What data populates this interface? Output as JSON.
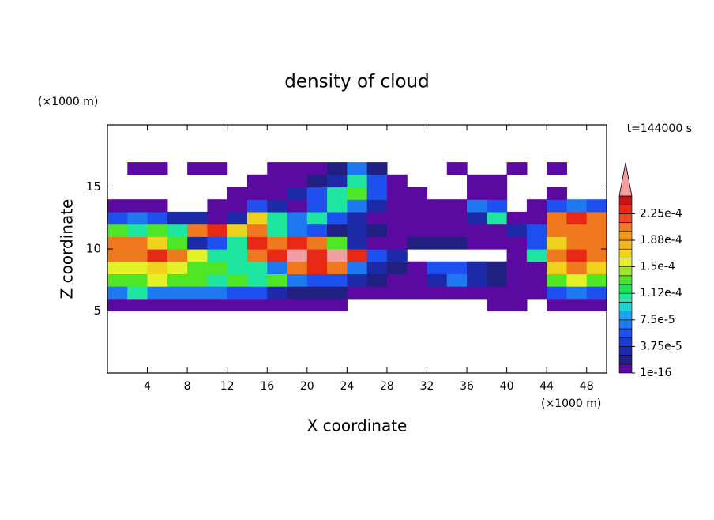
{
  "chart_data": {
    "type": "contour",
    "title": "density of cloud",
    "xlabel": "X coordinate",
    "ylabel": "Z coordinate",
    "x_unit": "(×1000 m)",
    "y_unit": "(×1000 m)",
    "annotation": "t=144000 s",
    "xlim": [
      0,
      50
    ],
    "ylim": [
      0,
      20
    ],
    "xticks": [
      4,
      8,
      12,
      16,
      20,
      24,
      28,
      32,
      36,
      40,
      44,
      48
    ],
    "yticks": [
      5,
      10,
      15
    ],
    "x": [
      1,
      3,
      5,
      7,
      9,
      11,
      13,
      15,
      17,
      19,
      21,
      23,
      25,
      27,
      29,
      31,
      33,
      35,
      37,
      39,
      41,
      43,
      45,
      47,
      49
    ],
    "z": [
      5.5,
      6.5,
      7.5,
      8.5,
      9.5,
      10.5,
      11.5,
      12.5,
      13.5,
      14.5,
      15.5,
      16.5
    ],
    "field": [
      [
        5e-06,
        5e-06,
        5e-06,
        5e-06,
        5e-06,
        5e-06,
        5e-06,
        5e-06,
        5e-06,
        5e-06,
        5e-06,
        5e-06,
        null,
        null,
        null,
        null,
        null,
        null,
        null,
        5e-06,
        5e-06,
        null,
        5e-06,
        5e-06,
        5e-06
      ],
      [
        7e-05,
        0.0001,
        7e-05,
        7e-05,
        7e-05,
        7e-05,
        5e-05,
        5e-05,
        3e-05,
        1.5e-05,
        1.5e-05,
        1.5e-05,
        5e-06,
        5e-06,
        5e-06,
        5e-06,
        5e-06,
        5e-06,
        5e-06,
        5e-06,
        5e-06,
        5e-06,
        5e-05,
        7e-05,
        5e-05
      ],
      [
        0.00013,
        0.00013,
        0.00015,
        0.00013,
        0.00013,
        0.0001,
        0.00013,
        0.0001,
        0.00013,
        7e-05,
        5e-05,
        5e-05,
        3e-05,
        1.5e-05,
        5e-06,
        5e-06,
        3e-05,
        7e-05,
        3e-05,
        1.5e-05,
        5e-06,
        5e-06,
        0.00013,
        0.00015,
        0.00013
      ],
      [
        0.00015,
        0.00015,
        0.00017,
        0.00015,
        0.00013,
        0.00013,
        0.0001,
        0.0001,
        7e-05,
        0.0002,
        0.00023,
        0.0002,
        7e-05,
        3e-05,
        1.5e-05,
        5e-06,
        5e-05,
        5e-05,
        3e-05,
        1.5e-05,
        5e-06,
        5e-06,
        0.00017,
        0.0002,
        0.00017
      ],
      [
        0.0002,
        0.0002,
        0.00023,
        0.0002,
        0.00015,
        0.0001,
        0.0001,
        0.0002,
        0.00023,
        0.00026,
        0.00023,
        0.00026,
        0.00023,
        5e-05,
        3e-05,
        null,
        null,
        null,
        null,
        null,
        5e-06,
        0.0001,
        0.0002,
        0.00023,
        0.0002
      ],
      [
        0.0002,
        0.0002,
        0.00017,
        0.00013,
        3e-05,
        5e-05,
        0.0001,
        0.00023,
        0.0002,
        0.00023,
        0.0002,
        0.00013,
        3e-05,
        5e-06,
        5e-06,
        1.5e-05,
        1.5e-05,
        1.5e-05,
        5e-06,
        5e-06,
        5e-06,
        5e-05,
        0.00017,
        0.0002,
        0.0002
      ],
      [
        0.00013,
        0.0001,
        0.00013,
        0.0001,
        0.0002,
        0.00023,
        0.00017,
        0.0002,
        0.0001,
        7e-05,
        5e-05,
        1.5e-05,
        3e-05,
        1.5e-05,
        5e-06,
        5e-06,
        5e-06,
        5e-06,
        5e-06,
        5e-06,
        3e-05,
        5e-05,
        0.0002,
        0.0002,
        0.0002
      ],
      [
        5e-05,
        7e-05,
        5e-05,
        3e-05,
        3e-05,
        5e-06,
        3e-05,
        0.00017,
        0.0001,
        7e-05,
        0.0001,
        5e-05,
        3e-05,
        5e-06,
        5e-06,
        5e-06,
        5e-06,
        5e-06,
        3e-05,
        0.0001,
        5e-06,
        5e-06,
        0.0002,
        0.00023,
        0.0002
      ],
      [
        5e-06,
        5e-06,
        5e-06,
        null,
        null,
        5e-06,
        5e-06,
        5e-05,
        3e-05,
        5e-06,
        5e-05,
        0.0001,
        7e-05,
        3e-05,
        5e-06,
        5e-06,
        5e-06,
        5e-06,
        7e-05,
        5e-05,
        null,
        5e-06,
        5e-05,
        7e-05,
        5e-05
      ],
      [
        null,
        null,
        null,
        null,
        null,
        null,
        5e-06,
        5e-06,
        5e-06,
        3e-05,
        5e-05,
        0.0001,
        0.00013,
        5e-05,
        5e-06,
        5e-06,
        null,
        null,
        5e-06,
        5e-06,
        null,
        null,
        5e-06,
        null,
        null
      ],
      [
        null,
        null,
        null,
        null,
        null,
        null,
        null,
        5e-06,
        5e-06,
        5e-06,
        1.5e-05,
        3e-05,
        0.0001,
        5e-05,
        5e-06,
        null,
        null,
        null,
        5e-06,
        5e-06,
        null,
        null,
        null,
        null,
        null
      ],
      [
        null,
        5e-06,
        5e-06,
        null,
        5e-06,
        5e-06,
        null,
        null,
        5e-06,
        5e-06,
        5e-06,
        1.5e-05,
        7e-05,
        1.5e-05,
        null,
        null,
        null,
        5e-06,
        null,
        null,
        5e-06,
        null,
        5e-06,
        null,
        null
      ]
    ],
    "levels": [
      1e-16,
      1.25e-05,
      2.5e-05,
      3.75e-05,
      5e-05,
      6.25e-05,
      7.5e-05,
      8.75e-05,
      0.0001,
      0.0001125,
      0.000125,
      0.0001375,
      0.00015,
      0.0001625,
      0.000175,
      0.0001875,
      0.0002,
      0.0002125,
      0.000225,
      0.0002375,
      0.00025
    ],
    "colors": [
      "#5a0aa0",
      "#202080",
      "#1c2aa8",
      "#1a3ad0",
      "#1e50f0",
      "#1e78f0",
      "#1ea0f0",
      "#1ed2d2",
      "#1ee6a0",
      "#1ee650",
      "#50e628",
      "#a0e628",
      "#e6f028",
      "#f0d21e",
      "#f0b41e",
      "#f0961e",
      "#f0781e",
      "#f0461e",
      "#e62814",
      "#c81414"
    ],
    "over_color": "#f0a0a0",
    "colorbar_ticks": [
      {
        "value": 1e-16,
        "label": "1e-16"
      },
      {
        "value": 3.75e-05,
        "label": "3.75e-5"
      },
      {
        "value": 7.5e-05,
        "label": "7.5e-5"
      },
      {
        "value": 0.0001125,
        "label": "1.12e-4"
      },
      {
        "value": 0.00015,
        "label": "1.5e-4"
      },
      {
        "value": 0.0001875,
        "label": "1.88e-4"
      },
      {
        "value": 0.000225,
        "label": "2.25e-4"
      }
    ]
  }
}
